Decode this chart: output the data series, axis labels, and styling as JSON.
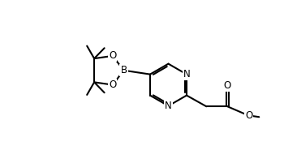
{
  "bg_color": "#ffffff",
  "line_color": "#000000",
  "line_width": 1.5,
  "font_size": 8.5,
  "fig_width": 3.5,
  "fig_height": 1.8,
  "dpi": 100,
  "xlim": [
    0,
    10
  ],
  "ylim": [
    0,
    5.5
  ]
}
